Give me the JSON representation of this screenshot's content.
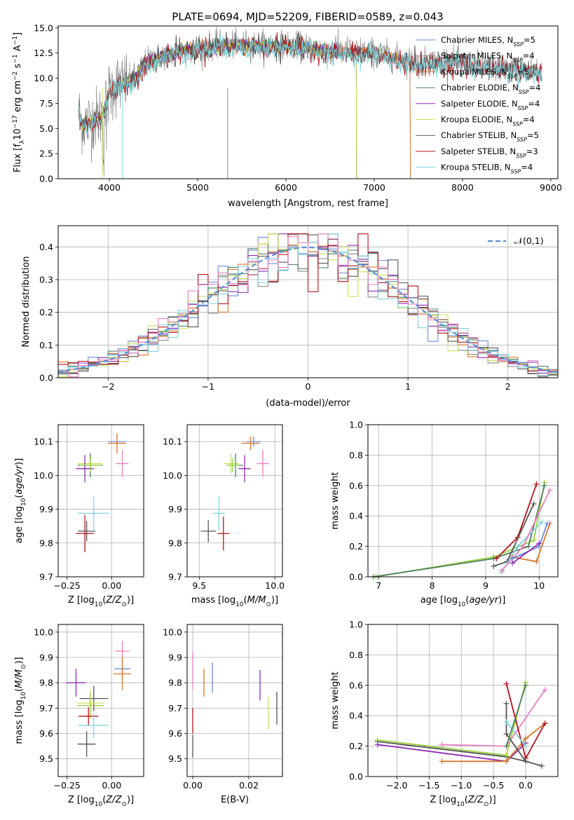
{
  "figure_title": "PLATE=0694, MJD=52209, FIBERID=0589, z=0.043",
  "colors": {
    "Chabrier MILES": "#6b8fd6",
    "Salpeter MILES": "#8c8c8c",
    "Kroupa MILES": "#d9772a",
    "Chabrier ELODIE": "#4f7f62",
    "Salpeter ELODIE": "#8e2bb5",
    "Kroupa ELODIE": "#c8e25a",
    "Chabrier STELIB": "#555555",
    "Salpeter STELIB": "#b0141a",
    "Kroupa STELIB": "#7fd6de",
    "Normal": "#5b8fd6",
    "Pink": "#e77fbf",
    "Lime": "#9cd23a",
    "Grid": "#b0b0b0"
  },
  "chart_data": [
    {
      "id": "spectrum",
      "type": "line",
      "title": "",
      "xlabel": "wavelength [Angstrom, rest frame]",
      "ylabel": "Flux [f_λ10^{-17} erg cm^{-2} s^{-1} A^{-1}]",
      "xlim": [
        3420,
        9080
      ],
      "ylim": [
        0,
        15.2
      ],
      "xticks": [
        4000,
        5000,
        6000,
        7000,
        8000,
        9000
      ],
      "yticks": [
        0.0,
        2.5,
        5.0,
        7.5,
        10.0,
        12.5,
        15.0
      ],
      "grid": false,
      "legend_position": "top-right",
      "legend": [
        {
          "name": "Chabrier MILES",
          "nssp": 5
        },
        {
          "name": "Salpeter MILES",
          "nssp": 4
        },
        {
          "name": "Kroupa MILES",
          "nssp": 5
        },
        {
          "name": "Chabrier ELODIE",
          "nssp": 4
        },
        {
          "name": "Salpeter ELODIE",
          "nssp": 4
        },
        {
          "name": "Kroupa ELODIE",
          "nssp": 4
        },
        {
          "name": "Chabrier STELIB",
          "nssp": 5
        },
        {
          "name": "Salpeter STELIB",
          "nssp": 3
        },
        {
          "name": "Kroupa STELIB",
          "nssp": 4
        }
      ],
      "continuum": [
        [
          3650,
          6.5
        ],
        [
          3700,
          5.5
        ],
        [
          3800,
          5.8
        ],
        [
          3900,
          6.2
        ],
        [
          3950,
          7.0
        ],
        [
          4000,
          8.8
        ],
        [
          4100,
          9.4
        ],
        [
          4200,
          9.6
        ],
        [
          4300,
          10.2
        ],
        [
          4400,
          11.5
        ],
        [
          4500,
          12.0
        ],
        [
          4700,
          12.5
        ],
        [
          4900,
          13.0
        ],
        [
          5200,
          13.3
        ],
        [
          5500,
          13.4
        ],
        [
          6000,
          13.3
        ],
        [
          6500,
          12.8
        ],
        [
          7000,
          12.6
        ],
        [
          7500,
          11.5
        ],
        [
          7800,
          11.8
        ],
        [
          8200,
          11.3
        ],
        [
          8600,
          11.0
        ],
        [
          8900,
          10.8
        ]
      ],
      "model_end": {
        "MILES": 7410,
        "ELODIE": 6800,
        "STELIB": 8900
      },
      "observed_end": 8900
    },
    {
      "id": "residuals",
      "type": "histogram",
      "xlabel": "(data-model)/error",
      "ylabel": "Normed distribution",
      "xlim": [
        -2.5,
        2.5
      ],
      "ylim": [
        0,
        0.465
      ],
      "xticks": [
        -2,
        -1,
        0,
        1,
        2
      ],
      "yticks": [
        0.0,
        0.1,
        0.2,
        0.3,
        0.4
      ],
      "grid": true,
      "bin_edges_from": -2.5,
      "bin_width": 0.1,
      "legend": [
        {
          "name": "𝒩(0,1)",
          "style": "dashed"
        }
      ],
      "legend_position": "top-right"
    },
    {
      "id": "age_vs_Z",
      "type": "errorbar",
      "xlabel": "Z [log10(Z/Z⊙)]",
      "ylabel": "age  [log10(age/yr)]",
      "xlim": [
        -0.3,
        0.18
      ],
      "ylim": [
        9.7,
        10.15
      ],
      "xticks": [
        -0.25,
        0.0
      ],
      "yticks": [
        9.7,
        9.8,
        9.9,
        10.0,
        10.1
      ],
      "grid": true,
      "points": [
        {
          "s": "Chabrier MILES",
          "x": 0.03,
          "xe": 0.1,
          "y": 10.1,
          "ye": 0.02
        },
        {
          "s": "Kroupa MILES",
          "x": 0.03,
          "xe": 0.1,
          "y": 10.095,
          "ye": 0.06
        },
        {
          "s": "Pink",
          "x": 0.06,
          "xe": 0.07,
          "y": 10.035,
          "ye": 0.08
        },
        {
          "s": "Kroupa ELODIE",
          "x": -0.12,
          "xe": 0.14,
          "y": 10.035,
          "ye": 0.06
        },
        {
          "s": "Chabrier ELODIE",
          "x": -0.12,
          "xe": 0.14,
          "y": 10.03,
          "ye": 0.07
        },
        {
          "s": "Salpeter ELODIE",
          "x": -0.15,
          "xe": 0.1,
          "y": 10.02,
          "ye": 0.08
        },
        {
          "s": "Lime",
          "x": -0.12,
          "xe": 0.12,
          "y": 10.03,
          "ye": 0.04
        },
        {
          "s": "Kroupa STELIB",
          "x": -0.1,
          "xe": 0.18,
          "y": 9.888,
          "ye": 0.1
        },
        {
          "s": "Chabrier STELIB",
          "x": -0.14,
          "xe": 0.1,
          "y": 9.835,
          "ye": 0.06
        },
        {
          "s": "Salpeter STELIB",
          "x": -0.15,
          "xe": 0.1,
          "y": 9.828,
          "ye": 0.11
        }
      ]
    },
    {
      "id": "age_vs_mass",
      "type": "errorbar",
      "xlabel": "mass [log10(M/M⊙)]",
      "ylabel": "",
      "xlim": [
        9.42,
        10.05
      ],
      "ylim": [
        9.7,
        10.15
      ],
      "xticks": [
        9.5,
        10.0
      ],
      "yticks": [
        9.7,
        9.8,
        9.9,
        10.0,
        10.1
      ],
      "grid": true,
      "points": [
        {
          "s": "Chabrier MILES",
          "x": 9.86,
          "xe": 0.1,
          "y": 10.1,
          "ye": 0.03
        },
        {
          "s": "Kroupa MILES",
          "x": 9.84,
          "xe": 0.12,
          "y": 10.095,
          "ye": 0.04
        },
        {
          "s": "Pink",
          "x": 9.92,
          "xe": 0.08,
          "y": 10.035,
          "ye": 0.08
        },
        {
          "s": "Kroupa ELODIE",
          "x": 9.71,
          "xe": 0.1,
          "y": 10.035,
          "ye": 0.06
        },
        {
          "s": "Chabrier ELODIE",
          "x": 9.74,
          "xe": 0.1,
          "y": 10.03,
          "ye": 0.07
        },
        {
          "s": "Salpeter ELODIE",
          "x": 9.8,
          "xe": 0.08,
          "y": 10.02,
          "ye": 0.08
        },
        {
          "s": "Lime",
          "x": 9.72,
          "xe": 0.08,
          "y": 10.03,
          "ye": 0.04
        },
        {
          "s": "Kroupa STELIB",
          "x": 9.63,
          "xe": 0.08,
          "y": 9.888,
          "ye": 0.1
        },
        {
          "s": "Chabrier STELIB",
          "x": 9.56,
          "xe": 0.1,
          "y": 9.835,
          "ye": 0.065
        },
        {
          "s": "Salpeter STELIB",
          "x": 9.66,
          "xe": 0.08,
          "y": 9.828,
          "ye": 0.1
        }
      ]
    },
    {
      "id": "weight_vs_age",
      "type": "line",
      "xlabel": "age  [log10(age/yr)]",
      "ylabel": "mass weight",
      "xlim": [
        6.8,
        10.35
      ],
      "ylim": [
        0,
        1.0
      ],
      "xticks": [
        7,
        8,
        9,
        10
      ],
      "yticks": [
        0.0,
        0.2,
        0.4,
        0.6,
        0.8,
        1.0
      ],
      "grid": true,
      "series": [
        {
          "s": "Lime",
          "x": [
            6.95,
            9.15,
            9.9,
            10.1
          ],
          "y": [
            0.0,
            0.13,
            0.24,
            0.62
          ]
        },
        {
          "s": "Chabrier ELODIE",
          "x": [
            6.9,
            9.15,
            9.8,
            10.1
          ],
          "y": [
            0.0,
            0.12,
            0.2,
            0.6
          ]
        },
        {
          "s": "Salpeter STELIB",
          "x": [
            9.2,
            9.6,
            9.95
          ],
          "y": [
            0.12,
            0.26,
            0.61
          ]
        },
        {
          "s": "Chabrier STELIB",
          "x": [
            9.15,
            9.4,
            9.9
          ],
          "y": [
            0.07,
            0.1,
            0.48
          ]
        },
        {
          "s": "Kroupa STELIB",
          "x": [
            9.3,
            9.6,
            10.05
          ],
          "y": [
            0.03,
            0.2,
            0.36
          ]
        },
        {
          "s": "Kroupa MILES",
          "x": [
            9.5,
            9.95,
            10.2
          ],
          "y": [
            0.13,
            0.1,
            0.35
          ]
        },
        {
          "s": "Pink",
          "x": [
            9.3,
            9.7,
            10.2
          ],
          "y": [
            0.04,
            0.2,
            0.57
          ]
        },
        {
          "s": "Chabrier MILES",
          "x": [
            9.5,
            10.0,
            10.15
          ],
          "y": [
            0.12,
            0.2,
            0.35
          ]
        },
        {
          "s": "Salpeter ELODIE",
          "x": [
            9.5,
            10.0
          ],
          "y": [
            0.09,
            0.22
          ]
        }
      ]
    },
    {
      "id": "mass_vs_Z",
      "type": "errorbar",
      "xlabel": "Z [log10(Z/Z⊙)]",
      "ylabel": "mass [log10(M/M⊙)]",
      "xlim": [
        -0.3,
        0.18
      ],
      "ylim": [
        9.43,
        10.03
      ],
      "xticks": [
        -0.25,
        0.0
      ],
      "yticks": [
        9.5,
        9.6,
        9.7,
        9.8,
        9.9,
        10.0
      ],
      "grid": true,
      "points": [
        {
          "s": "Pink",
          "x": 0.06,
          "xe": 0.08,
          "y": 9.925,
          "ye": 0.08
        },
        {
          "s": "Chabrier MILES",
          "x": 0.06,
          "xe": 0.09,
          "y": 9.855,
          "ye": 0.07
        },
        {
          "s": "Kroupa MILES",
          "x": 0.06,
          "xe": 0.1,
          "y": 9.835,
          "ye": 0.13
        },
        {
          "s": "Salpeter ELODIE",
          "x": -0.2,
          "xe": 0.11,
          "y": 9.8,
          "ye": 0.11
        },
        {
          "s": "Chabrier STELIB",
          "x": -0.1,
          "xe": 0.16,
          "y": 9.738,
          "ye": 0.1
        },
        {
          "s": "Kroupa ELODIE",
          "x": -0.12,
          "xe": 0.15,
          "y": 9.72,
          "ye": 0.1
        },
        {
          "s": "Lime",
          "x": -0.12,
          "xe": 0.15,
          "y": 9.71,
          "ye": 0.1
        },
        {
          "s": "Salpeter STELIB",
          "x": -0.13,
          "xe": 0.11,
          "y": 9.668,
          "ye": 0.07
        },
        {
          "s": "Kroupa STELIB",
          "x": -0.1,
          "xe": 0.17,
          "y": 9.632,
          "ye": 0.1
        },
        {
          "s": "Chabrier STELIB",
          "x": -0.14,
          "xe": 0.1,
          "y": 9.558,
          "ye": 0.1
        }
      ]
    },
    {
      "id": "mass_vs_ebv",
      "type": "errorbar",
      "xlabel": "E(B-V)",
      "ylabel": "",
      "xlim": [
        -0.002,
        0.032
      ],
      "ylim": [
        9.43,
        10.03
      ],
      "xticks": [
        0.0,
        0.02
      ],
      "yticks": [
        9.5,
        9.6,
        9.7,
        9.8,
        9.9,
        10.0
      ],
      "grid": true,
      "points": [
        {
          "s": "Pink",
          "x": 0.0,
          "y": 9.85,
          "ye": 0.15
        },
        {
          "s": "Salpeter STELIB",
          "x": 0.0,
          "y": 9.65,
          "ye": 0.1
        },
        {
          "s": "Chabrier STELIB",
          "x": 0.0,
          "y": 9.55,
          "ye": 0.09
        },
        {
          "s": "Kroupa MILES",
          "x": 0.004,
          "y": 9.8,
          "ye": 0.11
        },
        {
          "s": "Chabrier MILES",
          "x": 0.007,
          "y": 9.82,
          "ye": 0.12
        },
        {
          "s": "Salpeter ELODIE",
          "x": 0.024,
          "y": 9.79,
          "ye": 0.12
        },
        {
          "s": "Kroupa ELODIE",
          "x": 0.027,
          "y": 9.68,
          "ye": 0.13
        },
        {
          "s": "Chabrier STELIB",
          "x": 0.03,
          "y": 9.7,
          "ye": 0.13
        }
      ]
    },
    {
      "id": "weight_vs_Z",
      "type": "line",
      "xlabel": "Z [log10(Z/Z⊙)]",
      "ylabel": "mass weight",
      "xlim": [
        -2.45,
        0.5
      ],
      "ylim": [
        0,
        1.0
      ],
      "xticks": [
        -2.0,
        -1.5,
        -1.0,
        -0.5,
        0.0
      ],
      "yticks": [
        0.0,
        0.2,
        0.4,
        0.6,
        0.8,
        1.0
      ],
      "grid": true,
      "series": [
        {
          "s": "Chabrier STELIB",
          "x": [
            -2.3,
            -0.3,
            0.0,
            0.25
          ],
          "y": [
            0.23,
            0.13,
            0.1,
            0.07
          ]
        },
        {
          "s": "Lime",
          "x": [
            -2.3,
            -0.3,
            0.0
          ],
          "y": [
            0.24,
            0.14,
            0.62
          ]
        },
        {
          "s": "Salpeter ELODIE",
          "x": [
            -2.3,
            -0.3,
            0.0
          ],
          "y": [
            0.21,
            0.1,
            0.22
          ]
        },
        {
          "s": "Pink",
          "x": [
            -1.3,
            -0.3,
            0.3
          ],
          "y": [
            0.21,
            0.2,
            0.57
          ]
        },
        {
          "s": "Kroupa MILES",
          "x": [
            -1.3,
            -0.3,
            0.0,
            0.3
          ],
          "y": [
            0.1,
            0.1,
            0.25,
            0.35
          ]
        },
        {
          "s": "Salpeter STELIB",
          "x": [
            -0.3,
            0.0,
            0.3
          ],
          "y": [
            0.61,
            0.12,
            0.35
          ]
        },
        {
          "s": "Chabrier STELIB",
          "x": [
            -0.3,
            -0.3,
            0.0
          ],
          "y": [
            0.48,
            0.28,
            0.1
          ]
        },
        {
          "s": "Kroupa STELIB",
          "x": [
            -0.3,
            0.0
          ],
          "y": [
            0.36,
            0.2
          ]
        },
        {
          "s": "Chabrier ELODIE",
          "x": [
            -0.3,
            0.0
          ],
          "y": [
            0.2,
            0.6
          ]
        }
      ]
    }
  ]
}
